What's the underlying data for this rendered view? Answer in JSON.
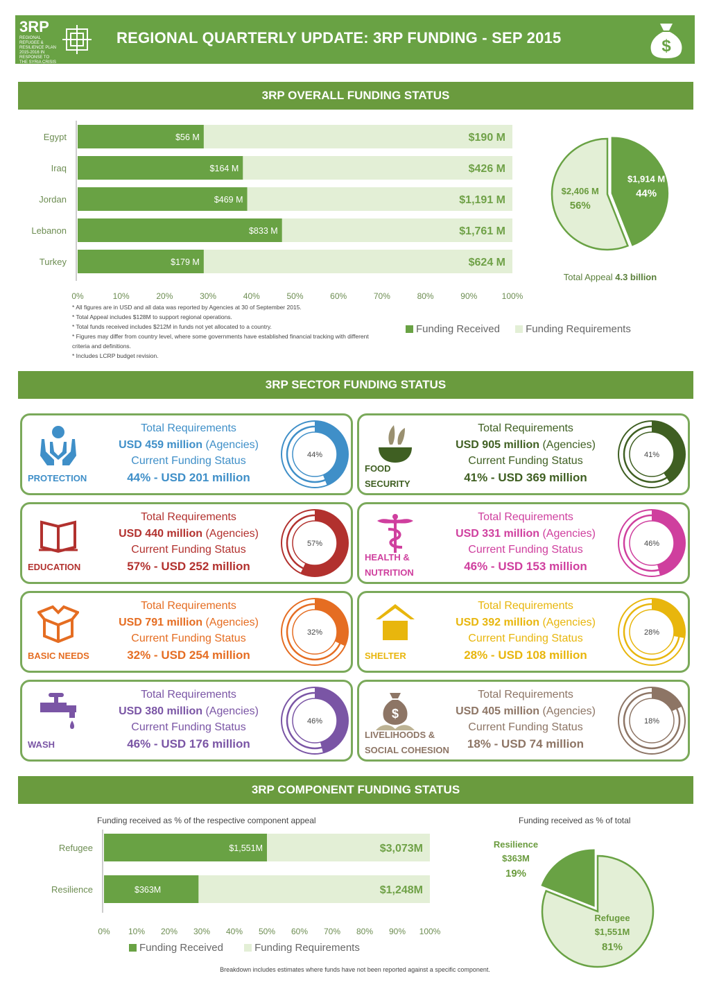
{
  "header": {
    "logo_text": "3RP",
    "logo_subtext": "REGIONAL REFUGEE & RESILIENCE PLAN 2015-2016 IN RESPONSE TO THE SYRIA CRISIS",
    "title": "REGIONAL QUARTERLY UPDATE: 3RP FUNDING - SEP 2015",
    "icon": "money-bag-icon"
  },
  "overall": {
    "section_title": "3RP OVERALL FUNDING STATUS",
    "pie_caption_prefix": "Total Appeal ",
    "pie_caption_value": "4.3 billion",
    "legend_received": "Funding Received",
    "legend_requirements": "Funding Requirements",
    "notes": [
      "* All figures are in USD and all data was reported by Agencies at 30 of September 2015.",
      "* Total Appeal includes $128M to support regional operations.",
      "* Total funds received includes $212M in funds not yet allocated to a country.",
      "* Figures may differ from country level, where some governments have established financial tracking with different criteria and definitions.",
      "* Includes LCRP budget revision."
    ]
  },
  "sectors": {
    "section_title": "3RP SECTOR FUNDING STATUS",
    "line_total": "Total Requirements",
    "line_current": "Current Funding Status",
    "agencies_suffix": " (Agencies)",
    "items": [
      {
        "name": "PROTECTION",
        "req": "USD 459 million",
        "status": "44% - USD 201 million",
        "pct_label": "44%",
        "pct": 44,
        "color": "#3f8fc8",
        "icon": "protection-hands-icon"
      },
      {
        "name": "FOOD SECURITY",
        "req": "USD 905 million",
        "status": "41% - USD 369 million",
        "pct_label": "41%",
        "pct": 41,
        "color": "#3f5f22",
        "icon": "food-bowl-icon"
      },
      {
        "name": "EDUCATION",
        "req": "USD 440 million",
        "status": "57% - USD 252 million",
        "pct_label": "57%",
        "pct": 57,
        "color": "#b2312e",
        "icon": "open-book-icon"
      },
      {
        "name": "HEALTH & NUTRITION",
        "req": "USD 331 million",
        "status": "46% - USD 153 million",
        "pct_label": "46%",
        "pct": 46,
        "color": "#cf3f9e",
        "icon": "caduceus-icon"
      },
      {
        "name": "BASIC NEEDS",
        "req": "USD 791 million",
        "status": "32% - USD 254 million",
        "pct_label": "32%",
        "pct": 32,
        "color": "#e56d22",
        "icon": "open-box-icon"
      },
      {
        "name": "SHELTER",
        "req": "USD 392 million",
        "status": "28% - USD 108 million",
        "pct_label": "28%",
        "pct": 28,
        "color": "#e8b60d",
        "icon": "house-icon"
      },
      {
        "name": "WASH",
        "req": "USD 380 million",
        "status": "46% - USD 176 million",
        "pct_label": "46%",
        "pct": 46,
        "color": "#7a55a5",
        "icon": "water-tap-icon"
      },
      {
        "name": "LIVELIHOODS & SOCIAL COHESION",
        "req": "USD 405 million",
        "status": "18% - USD 74 million",
        "pct_label": "18%",
        "pct": 18,
        "color": "#8d7565",
        "icon": "money-bag-plant-icon"
      }
    ]
  },
  "component": {
    "section_title": "3RP COMPONENT FUNDING STATUS",
    "bar_subtitle": "Funding received as % of the respective component appeal",
    "pie_subtitle": "Funding received as % of total",
    "legend_received": "Funding Received",
    "legend_requirements": "Funding Requirements",
    "footnote": "Breakdown includes estimates where funds have not been reported against a specific component."
  },
  "chart_data": [
    {
      "type": "bar",
      "orientation": "horizontal",
      "stacking": "overlay",
      "categories": [
        "Egypt",
        "Iraq",
        "Jordan",
        "Lebanon",
        "Turkey"
      ],
      "series": [
        {
          "name": "Funding Received",
          "values": [
            29,
            38,
            39,
            47,
            29
          ],
          "labels": [
            "$56 M",
            "$164 M",
            "$469 M",
            "$833 M",
            "$179 M"
          ],
          "color": "#69a244"
        },
        {
          "name": "Funding Requirements",
          "values": [
            100,
            100,
            100,
            100,
            100
          ],
          "labels": [
            "$190 M",
            "$426 M",
            "$1,191 M",
            "$1,761 M",
            "$624 M"
          ],
          "color": "#e3efd6"
        }
      ],
      "xlim": [
        0,
        100
      ],
      "xticks": [
        "0%",
        "10%",
        "20%",
        "30%",
        "40%",
        "50%",
        "60%",
        "70%",
        "80%",
        "90%",
        "100%"
      ],
      "legend": "bottom-right",
      "grid": false
    },
    {
      "type": "pie",
      "slices": [
        {
          "label": "$1,914 M",
          "pct_label": "44%",
          "value": 44,
          "color": "#69a244"
        },
        {
          "label": "$2,406 M",
          "pct_label": "56%",
          "value": 56,
          "color": "#e3efd6"
        }
      ]
    },
    {
      "type": "donut",
      "categories": [
        "PROTECTION",
        "FOOD SECURITY",
        "EDUCATION",
        "HEALTH & NUTRITION",
        "BASIC NEEDS",
        "SHELTER",
        "WASH",
        "LIVELIHOODS & SOCIAL COHESION"
      ],
      "values": [
        44,
        41,
        57,
        46,
        32,
        28,
        46,
        18
      ]
    },
    {
      "type": "bar",
      "orientation": "horizontal",
      "stacking": "overlay",
      "categories": [
        "Refugee",
        "Resilience"
      ],
      "series": [
        {
          "name": "Funding Received",
          "values": [
            50,
            29
          ],
          "labels": [
            "$1,551M",
            "$363M"
          ],
          "color": "#69a244"
        },
        {
          "name": "Funding Requirements",
          "values": [
            100,
            100
          ],
          "labels": [
            "$3,073M",
            "$1,248M"
          ],
          "color": "#e3efd6"
        }
      ],
      "xlim": [
        0,
        100
      ],
      "xticks": [
        "0%",
        "10%",
        "20%",
        "30%",
        "40%",
        "50%",
        "60%",
        "70%",
        "80%",
        "90%",
        "100%"
      ],
      "legend": "bottom",
      "grid": false
    },
    {
      "type": "pie",
      "slices": [
        {
          "name": "Resilience",
          "label": "$363M",
          "pct_label": "19%",
          "value": 19,
          "color": "#69a244"
        },
        {
          "name": "Refugee",
          "label": "$1,551M",
          "pct_label": "81%",
          "value": 81,
          "color": "#e3efd6"
        }
      ]
    }
  ]
}
